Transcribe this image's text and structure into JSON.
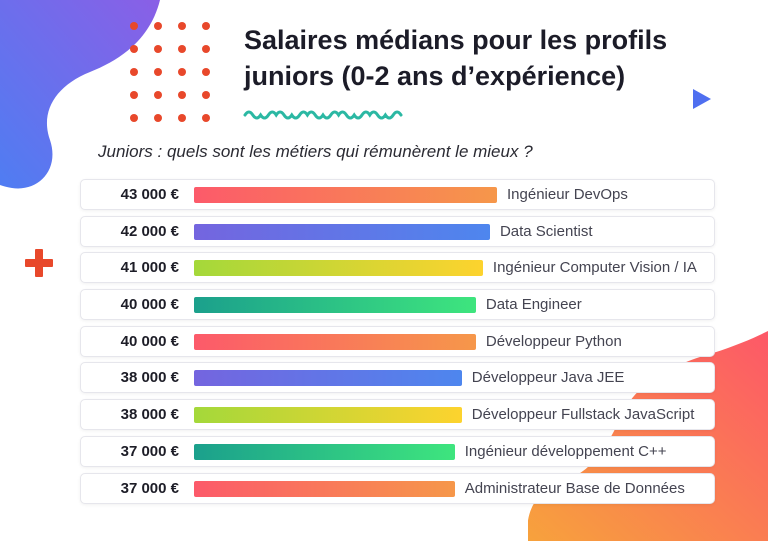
{
  "header": {
    "title_line1": "Salaires médians pour les profils",
    "title_line2": "juniors (0-2 ans d’expérience)",
    "subtitle": "Juniors : quels sont les métiers qui rémunèrent le mieux ?"
  },
  "decor": {
    "dots_color": "#e8482b",
    "wave_color": "#2bb8a3",
    "play_icon": "play-triangle-icon",
    "play_color": "#4f6ff0",
    "plus_icon": "plus-icon",
    "plus_color": "#e8482b"
  },
  "chart_data": {
    "type": "bar",
    "orientation": "horizontal",
    "title": "Salaires médians pour les profils juniors (0-2 ans d’expérience)",
    "subtitle": "Juniors : quels sont les métiers qui rémunèrent le mieux ?",
    "categories": [
      "Ingénieur DevOps",
      "Data Scientist",
      "Ingénieur Computer Vision / IA",
      "Data Engineer",
      "Développeur Python",
      "Développeur Java JEE",
      "Développeur Fullstack JavaScript",
      "Ingénieur développement C++",
      "Administrateur Base de Données"
    ],
    "values": [
      43000,
      42000,
      41000,
      40000,
      40000,
      38000,
      38000,
      37000,
      37000
    ],
    "value_labels": [
      "43 000 €",
      "42 000 €",
      "41  000 €",
      "40 000 €",
      "40 000 €",
      "38 000 €",
      "38 000 €",
      "37 000 €",
      "37 000 €"
    ],
    "unit": "€",
    "gradients": [
      [
        "#fc5a6a",
        "#f6974a"
      ],
      [
        "#7465df",
        "#4e86ee"
      ],
      [
        "#a4d83a",
        "#fdd32e"
      ],
      [
        "#1ba08c",
        "#3ee57e"
      ]
    ]
  }
}
